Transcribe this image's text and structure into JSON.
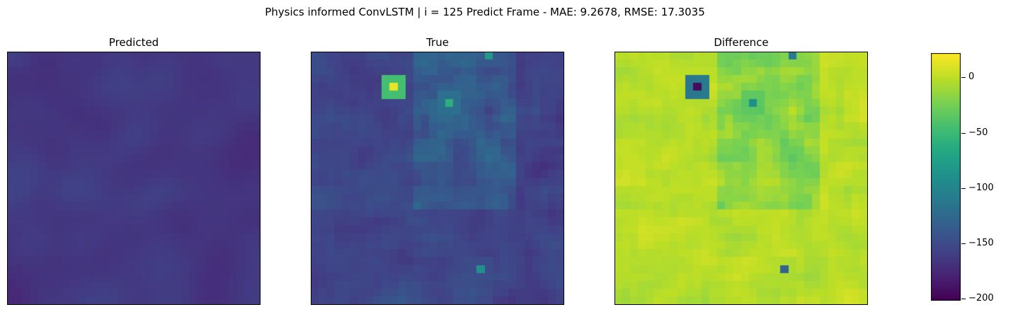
{
  "suptitle": "Physics informed ConvLSTM | i = 125 Predict Frame - MAE: 9.2678, RMSE: 17.3035",
  "chart_data": [
    {
      "type": "heatmap",
      "title": "Predicted",
      "grid_size": [
        32,
        32
      ],
      "colormap": "viridis",
      "value_range": [
        -200,
        22
      ],
      "description_level": "mostly low values (~ -170 to -200), uniform dark purple field"
    },
    {
      "type": "heatmap",
      "title": "True",
      "grid_size": [
        32,
        32
      ],
      "colormap": "viridis",
      "value_range": [
        -200,
        22
      ],
      "hotspots": [
        {
          "row": 4,
          "col": 10,
          "value": 15
        },
        {
          "row": 0,
          "col": 22,
          "value": -80
        },
        {
          "row": 6,
          "col": 17,
          "value": -60
        },
        {
          "row": 27,
          "col": 21,
          "value": -90
        }
      ]
    },
    {
      "type": "heatmap",
      "title": "Difference",
      "grid_size": [
        32,
        32
      ],
      "colormap": "viridis",
      "value_range": [
        -200,
        22
      ],
      "hotspots": [
        {
          "row": 4,
          "col": 10,
          "value": -195
        },
        {
          "row": 0,
          "col": 22,
          "value": -110
        },
        {
          "row": 6,
          "col": 17,
          "value": -90
        },
        {
          "row": 27,
          "col": 21,
          "value": -130
        }
      ]
    }
  ],
  "colorbar": {
    "min": -202,
    "max": 22,
    "ticks": [
      {
        "value": 0,
        "label": "0"
      },
      {
        "value": -50,
        "label": "−50"
      },
      {
        "value": -100,
        "label": "−100"
      },
      {
        "value": -150,
        "label": "−150"
      },
      {
        "value": -200,
        "label": "−200"
      }
    ]
  }
}
